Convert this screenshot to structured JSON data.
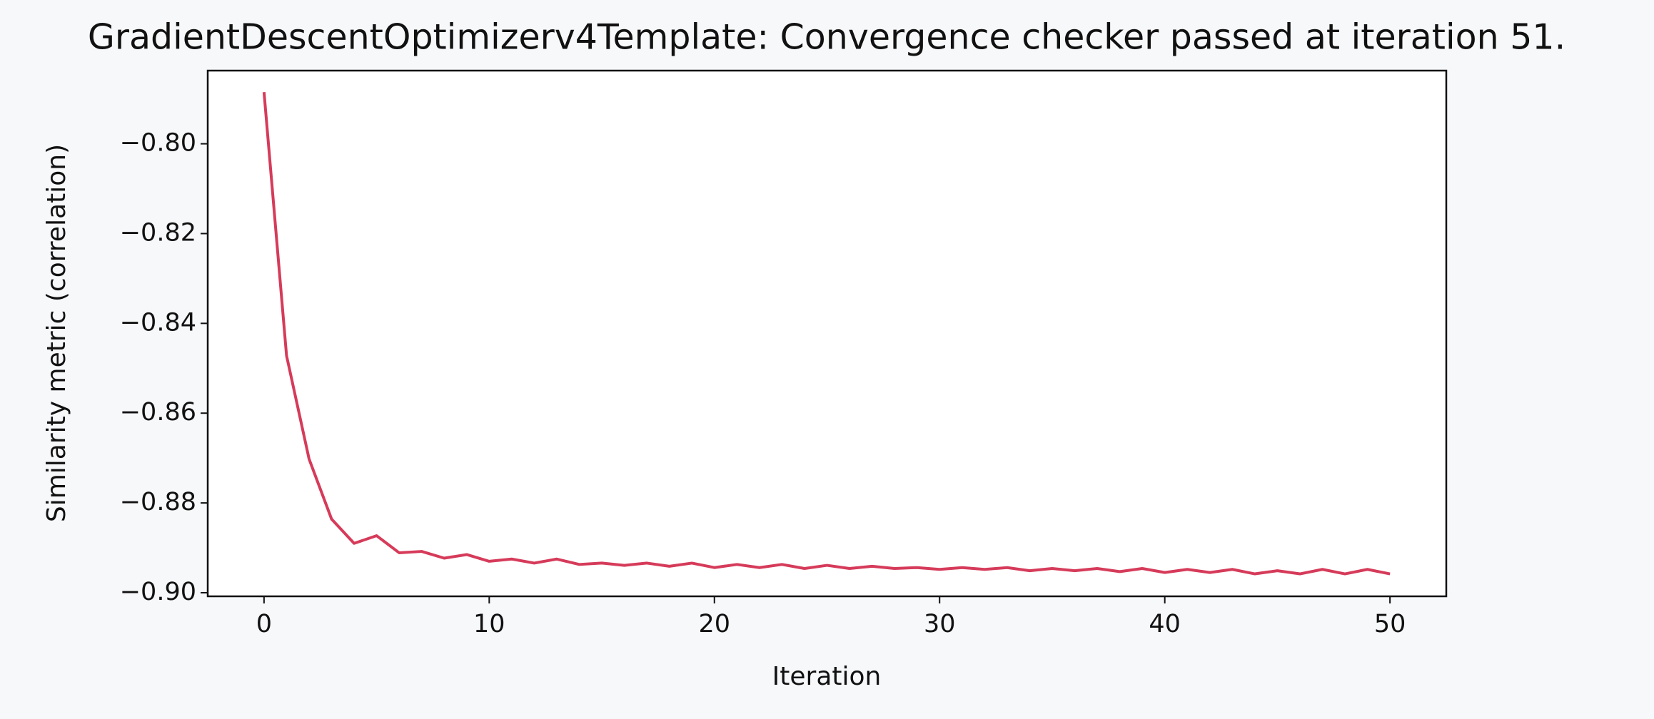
{
  "chart_data": {
    "type": "line",
    "title": "GradientDescentOptimizerv4Template: Convergence checker passed at iteration 51.",
    "x_label": "Iteration",
    "y_label": "Similarity metric (correlation)",
    "x": [
      0,
      1,
      2,
      3,
      4,
      5,
      6,
      7,
      8,
      9,
      10,
      11,
      12,
      13,
      14,
      15,
      16,
      17,
      18,
      19,
      20,
      21,
      22,
      23,
      24,
      25,
      26,
      27,
      28,
      29,
      30,
      31,
      32,
      33,
      34,
      35,
      36,
      37,
      38,
      39,
      40,
      41,
      42,
      43,
      44,
      45,
      46,
      47,
      48,
      49,
      50
    ],
    "series": [
      {
        "color": "#d63b5a",
        "values": [
          -0.7885,
          -0.8472,
          -0.8702,
          -0.8836,
          -0.889,
          -0.8873,
          -0.8911,
          -0.8908,
          -0.8923,
          -0.8915,
          -0.893,
          -0.8925,
          -0.8934,
          -0.8925,
          -0.8937,
          -0.8934,
          -0.8939,
          -0.8934,
          -0.8941,
          -0.8934,
          -0.8944,
          -0.8937,
          -0.8944,
          -0.8937,
          -0.8946,
          -0.8939,
          -0.8946,
          -0.8941,
          -0.8946,
          -0.8944,
          -0.8948,
          -0.8944,
          -0.8948,
          -0.8944,
          -0.8951,
          -0.8946,
          -0.8951,
          -0.8946,
          -0.8953,
          -0.8946,
          -0.8955,
          -0.8948,
          -0.8955,
          -0.8948,
          -0.8958,
          -0.8951,
          -0.8958,
          -0.8948,
          -0.8958,
          -0.8948,
          -0.8958
        ]
      }
    ],
    "xlim": [
      -2.5,
      52.5
    ],
    "ylim": [
      -0.9008,
      -0.7837
    ],
    "xticks": [
      0,
      10,
      20,
      30,
      40,
      50
    ],
    "yticks": [
      {
        "value": -0.8,
        "label": "−0.80"
      },
      {
        "value": -0.82,
        "label": "−0.82"
      },
      {
        "value": -0.84,
        "label": "−0.84"
      },
      {
        "value": -0.86,
        "label": "−0.86"
      },
      {
        "value": -0.88,
        "label": "−0.88"
      },
      {
        "value": -0.9,
        "label": "−0.90"
      }
    ],
    "grid": false
  }
}
